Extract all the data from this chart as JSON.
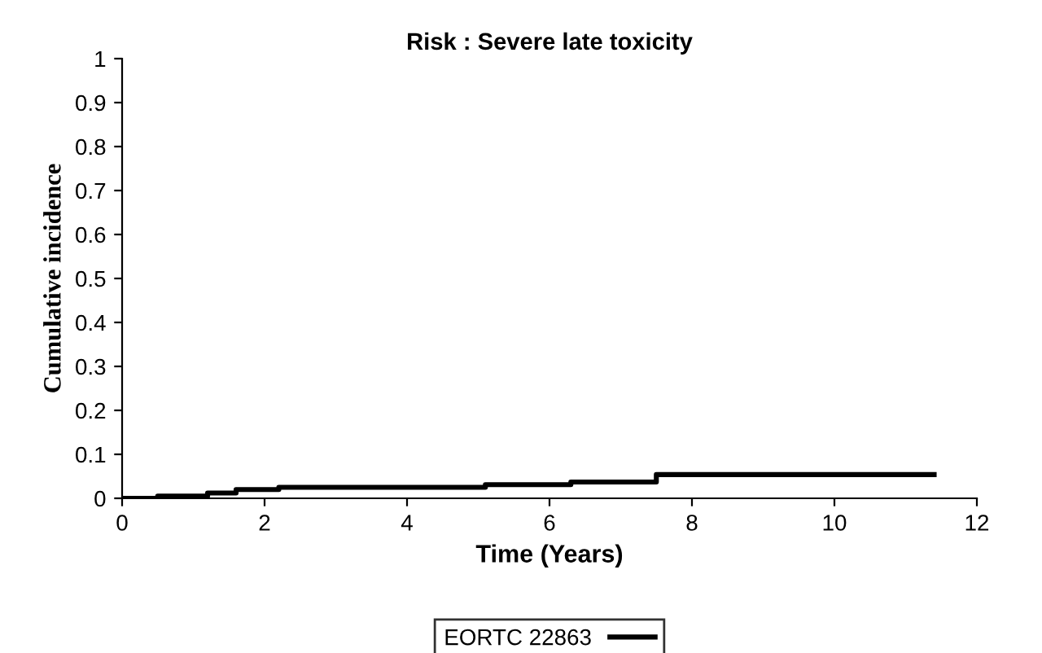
{
  "chart_data": {
    "type": "step",
    "title": "Risk : Severe late toxicity",
    "xlabel": "Time (Years)",
    "ylabel": "Cumulative incidence",
    "x": [
      0,
      0.5,
      1.2,
      1.6,
      2.2,
      5.1,
      6.3,
      7.5,
      11.4
    ],
    "series": [
      {
        "name": "EORTC 22863",
        "color": "#000000",
        "values": [
          0,
          0.005,
          0.012,
          0.02,
          0.025,
          0.031,
          0.037,
          0.054,
          0.054
        ]
      }
    ],
    "xlim": [
      0,
      12
    ],
    "xticks": [
      0,
      2,
      4,
      6,
      8,
      10,
      12
    ],
    "ylim": [
      0,
      1
    ],
    "yticks": [
      0,
      0.1,
      0.2,
      0.3,
      0.4,
      0.5,
      0.6,
      0.7,
      0.8,
      0.9,
      1
    ],
    "grid": false,
    "legend": "bottom",
    "line_style": "solid",
    "marker": "none"
  }
}
